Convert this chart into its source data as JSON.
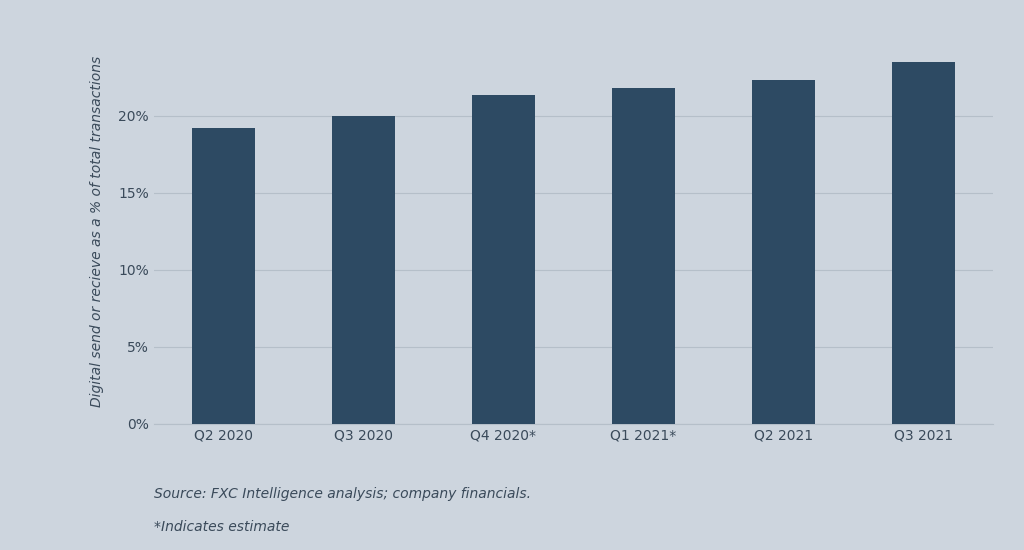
{
  "categories": [
    "Q2 2020",
    "Q3 2020",
    "Q4 2020*",
    "Q1 2021*",
    "Q2 2021",
    "Q3 2021"
  ],
  "values": [
    19.2,
    20.0,
    21.3,
    21.8,
    22.3,
    23.5
  ],
  "bar_color": "#2d4a63",
  "background_color": "#cdd5de",
  "ylabel": "Digital send or recieve as a % of total transactions",
  "yticks": [
    0,
    5,
    10,
    15,
    20
  ],
  "ytick_labels": [
    "0%",
    "5%",
    "10%",
    "15%",
    "20%"
  ],
  "ylim": [
    0,
    25
  ],
  "grid_color": "#b5bfc9",
  "text_color": "#3a4a5a",
  "source_text": "Source: FXC Intelligence analysis; company financials.",
  "note_text": "*Indicates estimate",
  "bar_width": 0.45,
  "ylabel_fontsize": 10,
  "tick_fontsize": 10,
  "source_fontsize": 10
}
